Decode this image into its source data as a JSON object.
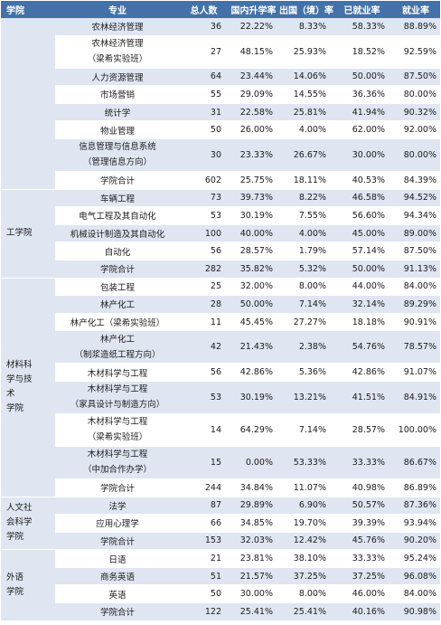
{
  "headers": [
    "学院",
    "专业",
    "总人数",
    "国内升学率",
    "出国（境）率",
    "已就业率",
    "就业率"
  ],
  "groups": [
    {
      "college_lines": [],
      "rows": [
        {
          "major": [
            "农林经济管理"
          ],
          "total": "36",
          "domestic": "22.22%",
          "abroad": "8.33%",
          "employed": "58.33%",
          "rate": "88.89%"
        },
        {
          "major": [
            "农林经济管理",
            "（梁希实验班）"
          ],
          "total": "27",
          "domestic": "48.15%",
          "abroad": "25.93%",
          "employed": "18.52%",
          "rate": "92.59%"
        },
        {
          "major": [
            "人力资源管理"
          ],
          "total": "64",
          "domestic": "23.44%",
          "abroad": "14.06%",
          "employed": "50.00%",
          "rate": "87.50%"
        },
        {
          "major": [
            "市场营销"
          ],
          "total": "55",
          "domestic": "29.09%",
          "abroad": "14.55%",
          "employed": "36.36%",
          "rate": "80.00%"
        },
        {
          "major": [
            "统计学"
          ],
          "total": "31",
          "domestic": "22.58%",
          "abroad": "25.81%",
          "employed": "41.94%",
          "rate": "90.32%"
        },
        {
          "major": [
            "物业管理"
          ],
          "total": "50",
          "domestic": "26.00%",
          "abroad": "4.00%",
          "employed": "62.00%",
          "rate": "92.00%"
        },
        {
          "major": [
            "信息管理与信息系统",
            "（管理信息方向）"
          ],
          "total": "30",
          "domestic": "23.33%",
          "abroad": "26.67%",
          "employed": "30.00%",
          "rate": "80.00%"
        },
        {
          "major": [
            "学院合计"
          ],
          "total": "602",
          "domestic": "25.75%",
          "abroad": "18.11%",
          "employed": "40.53%",
          "rate": "84.39%"
        }
      ]
    },
    {
      "college_lines": [
        "工学院"
      ],
      "rows": [
        {
          "major": [
            "车辆工程"
          ],
          "total": "73",
          "domestic": "39.73%",
          "abroad": "8.22%",
          "employed": "46.58%",
          "rate": "94.52%"
        },
        {
          "major": [
            "电气工程及其自动化"
          ],
          "total": "53",
          "domestic": "30.19%",
          "abroad": "7.55%",
          "employed": "56.60%",
          "rate": "94.34%"
        },
        {
          "major": [
            "机械设计制造及其自动化"
          ],
          "total": "100",
          "domestic": "40.00%",
          "abroad": "4.00%",
          "employed": "45.00%",
          "rate": "89.00%"
        },
        {
          "major": [
            "自动化"
          ],
          "total": "56",
          "domestic": "28.57%",
          "abroad": "1.79%",
          "employed": "57.14%",
          "rate": "87.50%"
        },
        {
          "major": [
            "学院合计"
          ],
          "total": "282",
          "domestic": "35.82%",
          "abroad": "5.32%",
          "employed": "50.00%",
          "rate": "91.13%"
        }
      ]
    },
    {
      "college_lines": [
        "材料科",
        "学与技",
        "术",
        "学院"
      ],
      "rows": [
        {
          "major": [
            "包装工程"
          ],
          "total": "25",
          "domestic": "32.00%",
          "abroad": "8.00%",
          "employed": "44.00%",
          "rate": "84.00%"
        },
        {
          "major": [
            "林产化工"
          ],
          "total": "28",
          "domestic": "50.00%",
          "abroad": "7.14%",
          "employed": "32.14%",
          "rate": "89.29%"
        },
        {
          "major": [
            "林产化工（梁希实验班）"
          ],
          "total": "11",
          "domestic": "45.45%",
          "abroad": "27.27%",
          "employed": "18.18%",
          "rate": "90.91%"
        },
        {
          "major": [
            "林产化工",
            "（制浆造纸工程方向）"
          ],
          "total": "42",
          "domestic": "21.43%",
          "abroad": "2.38%",
          "employed": "54.76%",
          "rate": "78.57%"
        },
        {
          "major": [
            "木材科学与工程"
          ],
          "total": "56",
          "domestic": "42.86%",
          "abroad": "5.36%",
          "employed": "42.86%",
          "rate": "91.07%"
        },
        {
          "major": [
            "木材科学与工程",
            "（家具设计与制造方向）"
          ],
          "total": "53",
          "domestic": "30.19%",
          "abroad": "13.21%",
          "employed": "41.51%",
          "rate": "84.91%"
        },
        {
          "major": [
            "木材科学与工程",
            "（梁希实验班）"
          ],
          "total": "14",
          "domestic": "64.29%",
          "abroad": "7.14%",
          "employed": "28.57%",
          "rate": "100.00%"
        },
        {
          "major": [
            "木材科学与工程",
            "（中加合作办学）"
          ],
          "total": "15",
          "domestic": "0.00%",
          "abroad": "53.33%",
          "employed": "33.33%",
          "rate": "86.67%"
        },
        {
          "major": [
            "学院合计"
          ],
          "total": "244",
          "domestic": "34.84%",
          "abroad": "11.07%",
          "employed": "40.98%",
          "rate": "86.89%"
        }
      ]
    },
    {
      "college_lines": [
        "人文社",
        "会科学",
        "学院"
      ],
      "rows": [
        {
          "major": [
            "法学"
          ],
          "total": "87",
          "domestic": "29.89%",
          "abroad": "6.90%",
          "employed": "50.57%",
          "rate": "87.36%"
        },
        {
          "major": [
            "应用心理学"
          ],
          "total": "66",
          "domestic": "34.85%",
          "abroad": "19.70%",
          "employed": "39.39%",
          "rate": "93.94%"
        },
        {
          "major": [
            "学院合计"
          ],
          "total": "153",
          "domestic": "32.03%",
          "abroad": "12.42%",
          "employed": "45.76%",
          "rate": "90.20%"
        }
      ]
    },
    {
      "college_lines": [
        "外语",
        "学院"
      ],
      "rows": [
        {
          "major": [
            "日语"
          ],
          "total": "21",
          "domestic": "23.81%",
          "abroad": "38.10%",
          "employed": "33.33%",
          "rate": "95.24%"
        },
        {
          "major": [
            "商务英语"
          ],
          "total": "51",
          "domestic": "21.57%",
          "abroad": "37.25%",
          "employed": "37.25%",
          "rate": "96.08%"
        },
        {
          "major": [
            "英语"
          ],
          "total": "50",
          "domestic": "30.00%",
          "abroad": "8.00%",
          "employed": "46.00%",
          "rate": "84.00%"
        },
        {
          "major": [
            "学院合计"
          ],
          "total": "122",
          "domestic": "25.41%",
          "abroad": "25.41%",
          "employed": "40.16%",
          "rate": "90.98%"
        }
      ]
    }
  ]
}
